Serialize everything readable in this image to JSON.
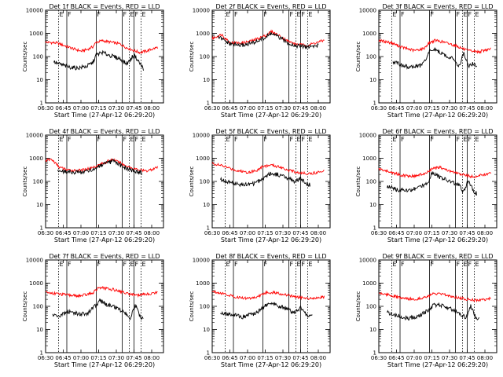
{
  "chart_data": [
    {
      "type": "line",
      "title": "Det 1f BLACK = Events, RED = LLD",
      "xlabel": "Start Time (27-Apr-12 06:29:20)",
      "ylabel": "Counts/sec",
      "yscale": "log",
      "ylim": [
        1,
        10000
      ],
      "x_ticks": [
        "06:30",
        "06:45",
        "07:00",
        "07:15",
        "07:30",
        "07:45",
        "08:00"
      ],
      "y_ticks": [
        "1",
        "10",
        "100",
        "1000",
        "10000"
      ],
      "vlines": [
        {
          "time": "06:41",
          "label": "E"
        },
        {
          "time": "06:48",
          "label": "F"
        },
        {
          "time": "07:13",
          "label": "F"
        },
        {
          "time": "07:35",
          "label": "F"
        },
        {
          "time": "07:41",
          "label": "E"
        },
        {
          "time": "07:45",
          "label": "F"
        },
        {
          "time": "07:51",
          "label": "E"
        }
      ],
      "series": [
        {
          "color": "#ff0000",
          "x": [
            "06:30",
            "06:40",
            "06:50",
            "07:00",
            "07:05",
            "07:10",
            "07:13",
            "07:18",
            "07:25",
            "07:33",
            "07:38",
            "07:45",
            "07:50",
            "07:55",
            "08:05"
          ],
          "y": [
            420,
            380,
            250,
            170,
            200,
            260,
            420,
            480,
            420,
            350,
            250,
            180,
            150,
            170,
            250
          ]
        },
        {
          "color": "#000000",
          "x": [
            "06:37",
            "06:40",
            "06:45",
            "06:50",
            "06:57",
            "07:05",
            "07:10",
            "07:13",
            "07:18",
            "07:25",
            "07:33",
            "07:38",
            "07:40",
            "07:45",
            "07:50",
            "07:53"
          ],
          "y": [
            60,
            50,
            42,
            35,
            32,
            38,
            55,
            120,
            150,
            110,
            80,
            50,
            55,
            120,
            50,
            30
          ]
        }
      ]
    },
    {
      "type": "line",
      "title": "Det 2f BLACK = Events, RED = LLD",
      "xlabel": "Start Time (27-Apr-12 06:29:20)",
      "ylabel": "Counts/sec",
      "yscale": "log",
      "ylim": [
        1,
        10000
      ],
      "x_ticks": [
        "06:30",
        "06:45",
        "07:00",
        "07:15",
        "07:30",
        "07:45",
        "08:00"
      ],
      "y_ticks": [
        "1",
        "10",
        "100",
        "1000",
        "10000"
      ],
      "vlines": [
        {
          "time": "06:41",
          "label": "E"
        },
        {
          "time": "06:48",
          "label": "F"
        },
        {
          "time": "07:13",
          "label": "F"
        },
        {
          "time": "07:35",
          "label": "F"
        },
        {
          "time": "07:41",
          "label": "E"
        },
        {
          "time": "07:45",
          "label": "F"
        },
        {
          "time": "07:51",
          "label": "E"
        }
      ],
      "series": [
        {
          "color": "#ff0000",
          "x": [
            "06:30",
            "06:38",
            "06:45",
            "06:55",
            "07:05",
            "07:15",
            "07:20",
            "07:25",
            "07:33",
            "07:40",
            "07:50",
            "08:05"
          ],
          "y": [
            600,
            900,
            400,
            380,
            500,
            800,
            1200,
            900,
            500,
            350,
            300,
            500
          ]
        },
        {
          "color": "#000000",
          "x": [
            "06:35",
            "06:45",
            "06:55",
            "07:05",
            "07:15",
            "07:20",
            "07:25",
            "07:33",
            "07:40",
            "07:50",
            "08:00"
          ],
          "y": [
            700,
            350,
            300,
            400,
            650,
            1000,
            750,
            420,
            300,
            260,
            300
          ]
        }
      ]
    },
    {
      "type": "line",
      "title": "Det 3f BLACK = Events, RED = LLD",
      "xlabel": "Start Time (27-Apr-12 06:29:20)",
      "ylabel": "Counts/sec",
      "yscale": "log",
      "ylim": [
        1,
        10000
      ],
      "x_ticks": [
        "06:30",
        "06:45",
        "07:00",
        "07:15",
        "07:30",
        "07:45",
        "08:00"
      ],
      "y_ticks": [
        "1",
        "10",
        "100",
        "1000",
        "10000"
      ],
      "vlines": [
        {
          "time": "06:41",
          "label": "E"
        },
        {
          "time": "06:48",
          "label": "F"
        },
        {
          "time": "07:13",
          "label": "F"
        },
        {
          "time": "07:35",
          "label": "F"
        },
        {
          "time": "07:41",
          "label": "E"
        },
        {
          "time": "07:45",
          "label": "F"
        },
        {
          "time": "07:51",
          "label": "E"
        }
      ],
      "series": [
        {
          "color": "#ff0000",
          "x": [
            "06:30",
            "06:40",
            "06:50",
            "07:00",
            "07:08",
            "07:13",
            "07:18",
            "07:25",
            "07:35",
            "07:45",
            "07:55",
            "08:05"
          ],
          "y": [
            500,
            400,
            250,
            180,
            220,
            400,
            500,
            420,
            300,
            180,
            160,
            220
          ]
        },
        {
          "color": "#000000",
          "x": [
            "06:42",
            "06:48",
            "06:55",
            "07:05",
            "07:10",
            "07:13",
            "07:18",
            "07:25",
            "07:33",
            "07:38",
            "07:42",
            "07:46",
            "07:50",
            "07:53"
          ],
          "y": [
            60,
            45,
            35,
            40,
            70,
            180,
            200,
            120,
            80,
            40,
            130,
            40,
            50,
            35
          ]
        }
      ]
    },
    {
      "type": "line",
      "title": "Det 4f BLACK = Events, RED = LLD",
      "xlabel": "Start Time (27-Apr-12 06:29:20)",
      "ylabel": "Counts/sec",
      "yscale": "log",
      "ylim": [
        1,
        10000
      ],
      "x_ticks": [
        "06:30",
        "06:45",
        "07:00",
        "07:15",
        "07:30",
        "07:45",
        "08:00"
      ],
      "y_ticks": [
        "1",
        "10",
        "100",
        "1000",
        "10000"
      ],
      "vlines": [
        {
          "time": "06:41",
          "label": "E"
        },
        {
          "time": "06:48",
          "label": "F"
        },
        {
          "time": "07:13",
          "label": "F"
        },
        {
          "time": "07:35",
          "label": "F"
        },
        {
          "time": "07:41",
          "label": "E"
        },
        {
          "time": "07:45",
          "label": "F"
        },
        {
          "time": "07:51",
          "label": "E"
        }
      ],
      "series": [
        {
          "color": "#ff0000",
          "x": [
            "06:30",
            "06:35",
            "06:42",
            "06:50",
            "07:00",
            "07:10",
            "07:20",
            "07:27",
            "07:35",
            "07:45",
            "07:55",
            "08:05"
          ],
          "y": [
            800,
            900,
            400,
            300,
            300,
            400,
            650,
            900,
            550,
            350,
            280,
            400
          ]
        },
        {
          "color": "#000000",
          "x": [
            "06:40",
            "06:50",
            "07:00",
            "07:10",
            "07:20",
            "07:27",
            "07:35",
            "07:45",
            "07:52"
          ],
          "y": [
            300,
            250,
            250,
            330,
            550,
            750,
            450,
            280,
            240
          ]
        }
      ]
    },
    {
      "type": "line",
      "title": "Det 5f BLACK = Events, RED = LLD",
      "xlabel": "Start Time (27-Apr-12 06:29:20)",
      "ylabel": "Counts/sec",
      "yscale": "log",
      "ylim": [
        1,
        10000
      ],
      "x_ticks": [
        "06:30",
        "06:45",
        "07:00",
        "07:15",
        "07:30",
        "07:45",
        "08:00"
      ],
      "y_ticks": [
        "1",
        "10",
        "100",
        "1000",
        "10000"
      ],
      "vlines": [
        {
          "time": "06:41",
          "label": "E"
        },
        {
          "time": "06:48",
          "label": "F"
        },
        {
          "time": "07:13",
          "label": "F"
        },
        {
          "time": "07:35",
          "label": "F"
        },
        {
          "time": "07:41",
          "label": "E"
        },
        {
          "time": "07:45",
          "label": "F"
        },
        {
          "time": "07:51",
          "label": "E"
        }
      ],
      "series": [
        {
          "color": "#ff0000",
          "x": [
            "06:30",
            "06:40",
            "06:50",
            "07:00",
            "07:08",
            "07:13",
            "07:20",
            "07:28",
            "07:35",
            "07:45",
            "07:55",
            "08:05"
          ],
          "y": [
            600,
            450,
            300,
            250,
            300,
            450,
            500,
            420,
            300,
            230,
            220,
            300
          ]
        },
        {
          "color": "#000000",
          "x": [
            "06:37",
            "06:45",
            "06:55",
            "07:05",
            "07:12",
            "07:18",
            "07:25",
            "07:33",
            "07:40",
            "07:45",
            "07:50",
            "07:53"
          ],
          "y": [
            120,
            90,
            70,
            80,
            120,
            220,
            200,
            150,
            100,
            130,
            80,
            70
          ]
        }
      ]
    },
    {
      "type": "line",
      "title": "Det 6f BLACK = Events, RED = LLD",
      "xlabel": "Start Time (27-Apr-12 06:29:20)",
      "ylabel": "Counts/sec",
      "yscale": "log",
      "ylim": [
        1,
        10000
      ],
      "x_ticks": [
        "06:30",
        "06:45",
        "07:00",
        "07:15",
        "07:30",
        "07:45",
        "08:00"
      ],
      "y_ticks": [
        "1",
        "10",
        "100",
        "1000",
        "10000"
      ],
      "vlines": [
        {
          "time": "06:41",
          "label": "E"
        },
        {
          "time": "06:48",
          "label": "F"
        },
        {
          "time": "07:13",
          "label": "F"
        },
        {
          "time": "07:35",
          "label": "F"
        },
        {
          "time": "07:41",
          "label": "E"
        },
        {
          "time": "07:45",
          "label": "F"
        },
        {
          "time": "07:51",
          "label": "E"
        }
      ],
      "series": [
        {
          "color": "#ff0000",
          "x": [
            "06:30",
            "06:40",
            "06:50",
            "07:00",
            "07:10",
            "07:15",
            "07:22",
            "07:30",
            "07:40",
            "07:50",
            "08:05"
          ],
          "y": [
            350,
            250,
            180,
            170,
            220,
            350,
            400,
            280,
            200,
            160,
            220
          ]
        },
        {
          "color": "#000000",
          "x": [
            "06:37",
            "06:45",
            "06:55",
            "07:05",
            "07:12",
            "07:15",
            "07:22",
            "07:30",
            "07:38",
            "07:42",
            "07:46",
            "07:50",
            "07:53"
          ],
          "y": [
            60,
            45,
            40,
            55,
            100,
            250,
            150,
            100,
            70,
            35,
            120,
            40,
            30
          ]
        }
      ]
    },
    {
      "type": "line",
      "title": "Det 7f BLACK = Events, RED = LLD",
      "xlabel": "Start Time (27-Apr-12 06:29:20)",
      "ylabel": "Counts/sec",
      "yscale": "log",
      "ylim": [
        1,
        10000
      ],
      "x_ticks": [
        "06:30",
        "06:45",
        "07:00",
        "07:15",
        "07:30",
        "07:45",
        "08:00"
      ],
      "y_ticks": [
        "1",
        "10",
        "100",
        "1000",
        "10000"
      ],
      "vlines": [
        {
          "time": "06:41",
          "label": "E"
        },
        {
          "time": "06:48",
          "label": "F"
        },
        {
          "time": "07:13",
          "label": "F"
        },
        {
          "time": "07:35",
          "label": "F"
        },
        {
          "time": "07:41",
          "label": "E"
        },
        {
          "time": "07:45",
          "label": "F"
        },
        {
          "time": "07:51",
          "label": "E"
        }
      ],
      "series": [
        {
          "color": "#ff0000",
          "x": [
            "06:30",
            "06:40",
            "06:50",
            "07:00",
            "07:10",
            "07:15",
            "07:20",
            "07:30",
            "07:40",
            "07:50",
            "08:05"
          ],
          "y": [
            400,
            350,
            300,
            280,
            380,
            650,
            600,
            500,
            350,
            300,
            400
          ]
        },
        {
          "color": "#000000",
          "x": [
            "06:36",
            "06:42",
            "06:48",
            "06:55",
            "07:05",
            "07:12",
            "07:16",
            "07:22",
            "07:30",
            "07:38",
            "07:42",
            "07:46",
            "07:50",
            "07:53"
          ],
          "y": [
            45,
            35,
            60,
            50,
            45,
            100,
            180,
            120,
            90,
            50,
            30,
            120,
            40,
            25
          ]
        }
      ]
    },
    {
      "type": "line",
      "title": "Det 8f BLACK = Events, RED = LLD",
      "xlabel": "Start Time (27-Apr-12 06:29:20)",
      "ylabel": "Counts/sec",
      "yscale": "log",
      "ylim": [
        1,
        10000
      ],
      "x_ticks": [
        "06:30",
        "06:45",
        "07:00",
        "07:15",
        "07:30",
        "07:45",
        "08:00"
      ],
      "y_ticks": [
        "1",
        "10",
        "100",
        "1000",
        "10000"
      ],
      "vlines": [
        {
          "time": "06:41",
          "label": "E"
        },
        {
          "time": "06:48",
          "label": "F"
        },
        {
          "time": "07:13",
          "label": "F"
        },
        {
          "time": "07:35",
          "label": "F"
        },
        {
          "time": "07:41",
          "label": "E"
        },
        {
          "time": "07:45",
          "label": "F"
        },
        {
          "time": "07:51",
          "label": "E"
        }
      ],
      "series": [
        {
          "color": "#ff0000",
          "x": [
            "06:30",
            "06:40",
            "06:50",
            "07:00",
            "07:08",
            "07:15",
            "07:22",
            "07:30",
            "07:40",
            "07:50",
            "08:05"
          ],
          "y": [
            450,
            350,
            250,
            220,
            250,
            380,
            400,
            330,
            260,
            220,
            250
          ]
        },
        {
          "color": "#000000",
          "x": [
            "06:37",
            "06:45",
            "06:55",
            "07:05",
            "07:12",
            "07:17",
            "07:25",
            "07:33",
            "07:40",
            "07:45",
            "07:50",
            "07:55"
          ],
          "y": [
            55,
            45,
            35,
            45,
            80,
            130,
            110,
            80,
            50,
            90,
            40,
            35
          ]
        }
      ]
    },
    {
      "type": "line",
      "title": "Det 9f BLACK = Events, RED = LLD",
      "xlabel": "Start Time (27-Apr-12 06:29:20)",
      "ylabel": "Counts/sec",
      "yscale": "log",
      "ylim": [
        1,
        10000
      ],
      "x_ticks": [
        "06:30",
        "06:45",
        "07:00",
        "07:15",
        "07:30",
        "07:45",
        "08:00"
      ],
      "y_ticks": [
        "1",
        "10",
        "100",
        "1000",
        "10000"
      ],
      "vlines": [
        {
          "time": "06:41",
          "label": "E"
        },
        {
          "time": "06:48",
          "label": "F"
        },
        {
          "time": "07:13",
          "label": "F"
        },
        {
          "time": "07:35",
          "label": "F"
        },
        {
          "time": "07:41",
          "label": "E"
        },
        {
          "time": "07:45",
          "label": "F"
        },
        {
          "time": "07:51",
          "label": "E"
        }
      ],
      "series": [
        {
          "color": "#ff0000",
          "x": [
            "06:30",
            "06:40",
            "06:50",
            "07:00",
            "07:10",
            "07:17",
            "07:25",
            "07:35",
            "07:45",
            "07:55",
            "08:05"
          ],
          "y": [
            380,
            300,
            220,
            200,
            250,
            350,
            320,
            250,
            200,
            180,
            220
          ]
        },
        {
          "color": "#000000",
          "x": [
            "06:37",
            "06:45",
            "06:55",
            "07:05",
            "07:12",
            "07:17",
            "07:25",
            "07:33",
            "07:40",
            "07:44",
            "07:48",
            "07:52",
            "07:55"
          ],
          "y": [
            55,
            40,
            30,
            40,
            70,
            120,
            100,
            70,
            45,
            30,
            100,
            35,
            28
          ]
        }
      ]
    }
  ]
}
